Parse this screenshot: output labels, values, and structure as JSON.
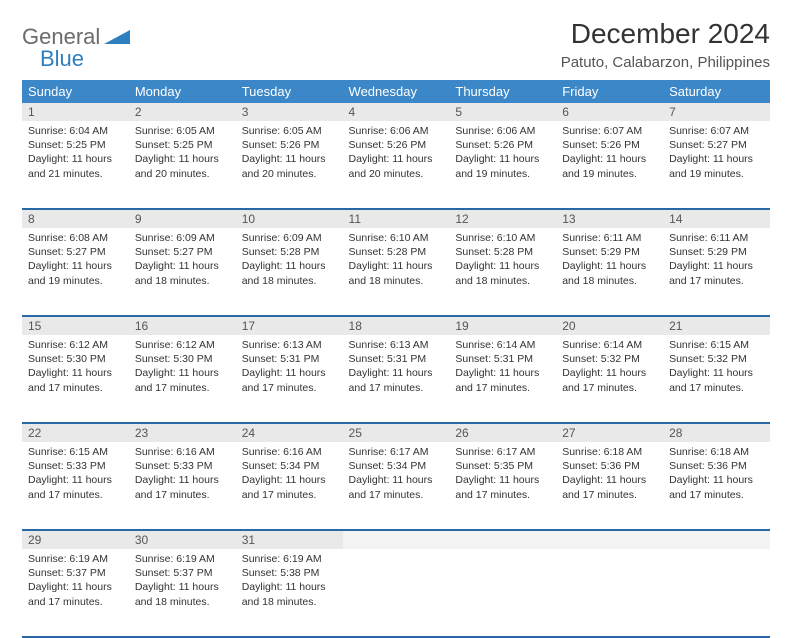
{
  "brand": {
    "word1": "General",
    "word2": "Blue"
  },
  "title": "December 2024",
  "location": "Patuto, Calabarzon, Philippines",
  "colors": {
    "header_bg": "#3b87c8",
    "row_divider": "#2968a3",
    "daynum_bg": "#e9e9e9",
    "logo_blue": "#2f7fbf",
    "logo_gray": "#6b6b6b"
  },
  "dayHeaders": [
    "Sunday",
    "Monday",
    "Tuesday",
    "Wednesday",
    "Thursday",
    "Friday",
    "Saturday"
  ],
  "weeks": [
    [
      {
        "n": 1,
        "sr": "6:04 AM",
        "ss": "5:25 PM",
        "dl": "11 hours and 21 minutes."
      },
      {
        "n": 2,
        "sr": "6:05 AM",
        "ss": "5:25 PM",
        "dl": "11 hours and 20 minutes."
      },
      {
        "n": 3,
        "sr": "6:05 AM",
        "ss": "5:26 PM",
        "dl": "11 hours and 20 minutes."
      },
      {
        "n": 4,
        "sr": "6:06 AM",
        "ss": "5:26 PM",
        "dl": "11 hours and 20 minutes."
      },
      {
        "n": 5,
        "sr": "6:06 AM",
        "ss": "5:26 PM",
        "dl": "11 hours and 19 minutes."
      },
      {
        "n": 6,
        "sr": "6:07 AM",
        "ss": "5:26 PM",
        "dl": "11 hours and 19 minutes."
      },
      {
        "n": 7,
        "sr": "6:07 AM",
        "ss": "5:27 PM",
        "dl": "11 hours and 19 minutes."
      }
    ],
    [
      {
        "n": 8,
        "sr": "6:08 AM",
        "ss": "5:27 PM",
        "dl": "11 hours and 19 minutes."
      },
      {
        "n": 9,
        "sr": "6:09 AM",
        "ss": "5:27 PM",
        "dl": "11 hours and 18 minutes."
      },
      {
        "n": 10,
        "sr": "6:09 AM",
        "ss": "5:28 PM",
        "dl": "11 hours and 18 minutes."
      },
      {
        "n": 11,
        "sr": "6:10 AM",
        "ss": "5:28 PM",
        "dl": "11 hours and 18 minutes."
      },
      {
        "n": 12,
        "sr": "6:10 AM",
        "ss": "5:28 PM",
        "dl": "11 hours and 18 minutes."
      },
      {
        "n": 13,
        "sr": "6:11 AM",
        "ss": "5:29 PM",
        "dl": "11 hours and 18 minutes."
      },
      {
        "n": 14,
        "sr": "6:11 AM",
        "ss": "5:29 PM",
        "dl": "11 hours and 17 minutes."
      }
    ],
    [
      {
        "n": 15,
        "sr": "6:12 AM",
        "ss": "5:30 PM",
        "dl": "11 hours and 17 minutes."
      },
      {
        "n": 16,
        "sr": "6:12 AM",
        "ss": "5:30 PM",
        "dl": "11 hours and 17 minutes."
      },
      {
        "n": 17,
        "sr": "6:13 AM",
        "ss": "5:31 PM",
        "dl": "11 hours and 17 minutes."
      },
      {
        "n": 18,
        "sr": "6:13 AM",
        "ss": "5:31 PM",
        "dl": "11 hours and 17 minutes."
      },
      {
        "n": 19,
        "sr": "6:14 AM",
        "ss": "5:31 PM",
        "dl": "11 hours and 17 minutes."
      },
      {
        "n": 20,
        "sr": "6:14 AM",
        "ss": "5:32 PM",
        "dl": "11 hours and 17 minutes."
      },
      {
        "n": 21,
        "sr": "6:15 AM",
        "ss": "5:32 PM",
        "dl": "11 hours and 17 minutes."
      }
    ],
    [
      {
        "n": 22,
        "sr": "6:15 AM",
        "ss": "5:33 PM",
        "dl": "11 hours and 17 minutes."
      },
      {
        "n": 23,
        "sr": "6:16 AM",
        "ss": "5:33 PM",
        "dl": "11 hours and 17 minutes."
      },
      {
        "n": 24,
        "sr": "6:16 AM",
        "ss": "5:34 PM",
        "dl": "11 hours and 17 minutes."
      },
      {
        "n": 25,
        "sr": "6:17 AM",
        "ss": "5:34 PM",
        "dl": "11 hours and 17 minutes."
      },
      {
        "n": 26,
        "sr": "6:17 AM",
        "ss": "5:35 PM",
        "dl": "11 hours and 17 minutes."
      },
      {
        "n": 27,
        "sr": "6:18 AM",
        "ss": "5:36 PM",
        "dl": "11 hours and 17 minutes."
      },
      {
        "n": 28,
        "sr": "6:18 AM",
        "ss": "5:36 PM",
        "dl": "11 hours and 17 minutes."
      }
    ],
    [
      {
        "n": 29,
        "sr": "6:19 AM",
        "ss": "5:37 PM",
        "dl": "11 hours and 17 minutes."
      },
      {
        "n": 30,
        "sr": "6:19 AM",
        "ss": "5:37 PM",
        "dl": "11 hours and 18 minutes."
      },
      {
        "n": 31,
        "sr": "6:19 AM",
        "ss": "5:38 PM",
        "dl": "11 hours and 18 minutes."
      },
      null,
      null,
      null,
      null
    ]
  ],
  "labels": {
    "sunrise": "Sunrise:",
    "sunset": "Sunset:",
    "daylight": "Daylight:"
  }
}
